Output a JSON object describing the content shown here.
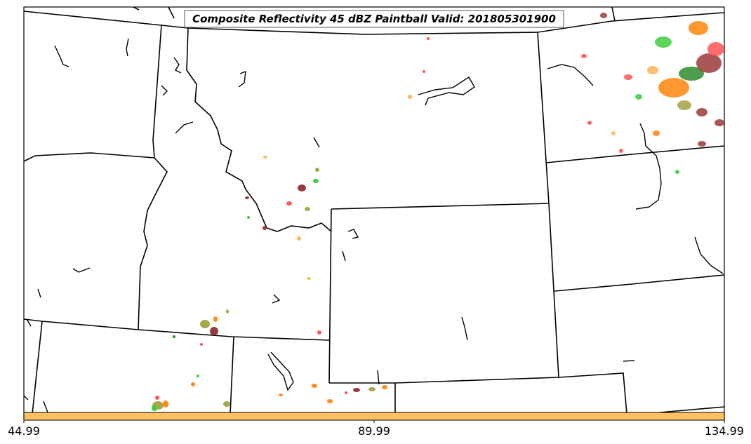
{
  "title": "Composite Reflectivity 45 dBZ Paintball Valid: 201805301900",
  "colorbar": {
    "color": "#fdc060",
    "tick_labels": [
      "44.99",
      "89.99",
      "134.99"
    ]
  },
  "colors": {
    "state_lines": "#000000",
    "paint_red": "#ff5555",
    "paint_orange": "#ff8c1a",
    "paint_light_orange": "#fdb860",
    "paint_green": "#3fcc3f",
    "paint_dark_green": "#2e8b2e",
    "paint_olive": "#a8a84a",
    "paint_brown": "#9b3a3a"
  }
}
